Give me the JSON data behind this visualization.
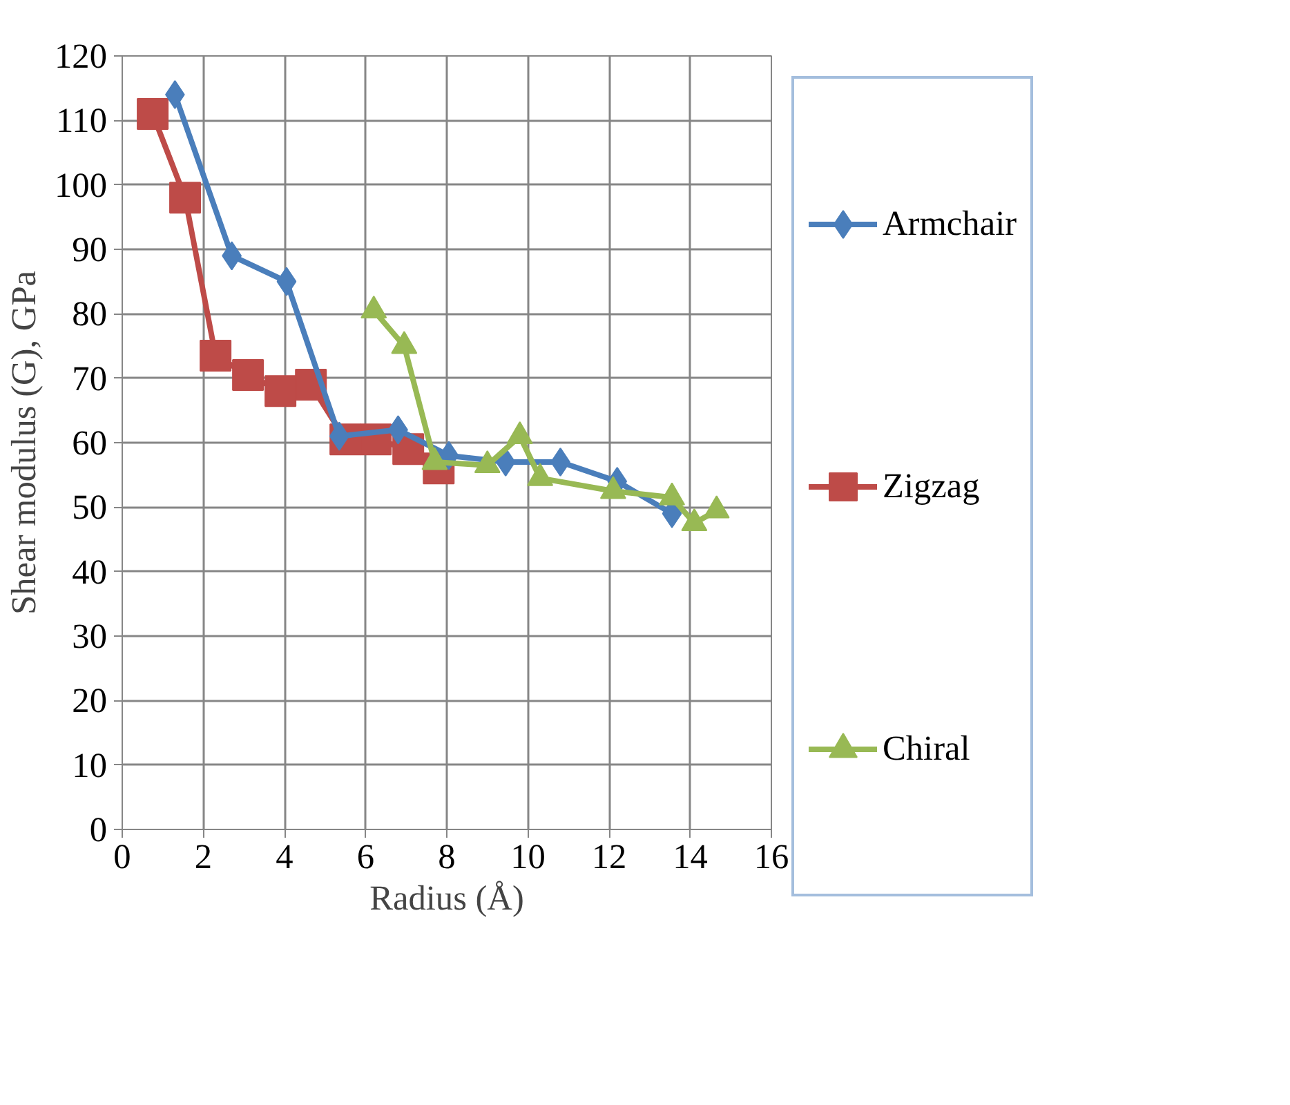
{
  "chart_data": {
    "type": "line",
    "xlabel": "Radius (Å)",
    "ylabel": "Shear modulus (G), GPa",
    "xlim": [
      0,
      16
    ],
    "xticks": [
      0,
      2,
      4,
      6,
      8,
      10,
      12,
      14,
      16
    ],
    "ylim": [
      0,
      120
    ],
    "yticks": [
      0,
      10,
      20,
      30,
      40,
      50,
      60,
      70,
      80,
      90,
      100,
      110,
      120
    ],
    "grid": true,
    "legend": "right",
    "line_style": "solid",
    "series": [
      {
        "name": "Armchair",
        "color": "#4a7ebb",
        "marker": "diamond",
        "x": [
          1.3,
          2.7,
          4.05,
          5.35,
          6.8,
          8.05,
          9.45,
          10.8,
          12.2,
          13.55
        ],
        "values": [
          114,
          89,
          85,
          61,
          62,
          58,
          57,
          57,
          54,
          49
        ]
      },
      {
        "name": "Zigzag",
        "color": "#be4b48",
        "marker": "square",
        "x": [
          0.75,
          1.55,
          2.3,
          3.1,
          3.9,
          4.65,
          5.5,
          6.25,
          7.05,
          7.8
        ],
        "values": [
          111,
          98,
          73.5,
          70.5,
          68,
          69,
          60.5,
          60.5,
          59,
          56
        ]
      },
      {
        "name": "Chiral",
        "color": "#98b954",
        "marker": "triangle",
        "x": [
          6.2,
          6.95,
          7.7,
          9.0,
          9.8,
          10.3,
          12.1,
          13.55,
          14.1,
          14.65
        ],
        "values": [
          80.5,
          75,
          57,
          56.5,
          61,
          54.5,
          52.5,
          51.5,
          47.5,
          49.5
        ]
      }
    ]
  }
}
